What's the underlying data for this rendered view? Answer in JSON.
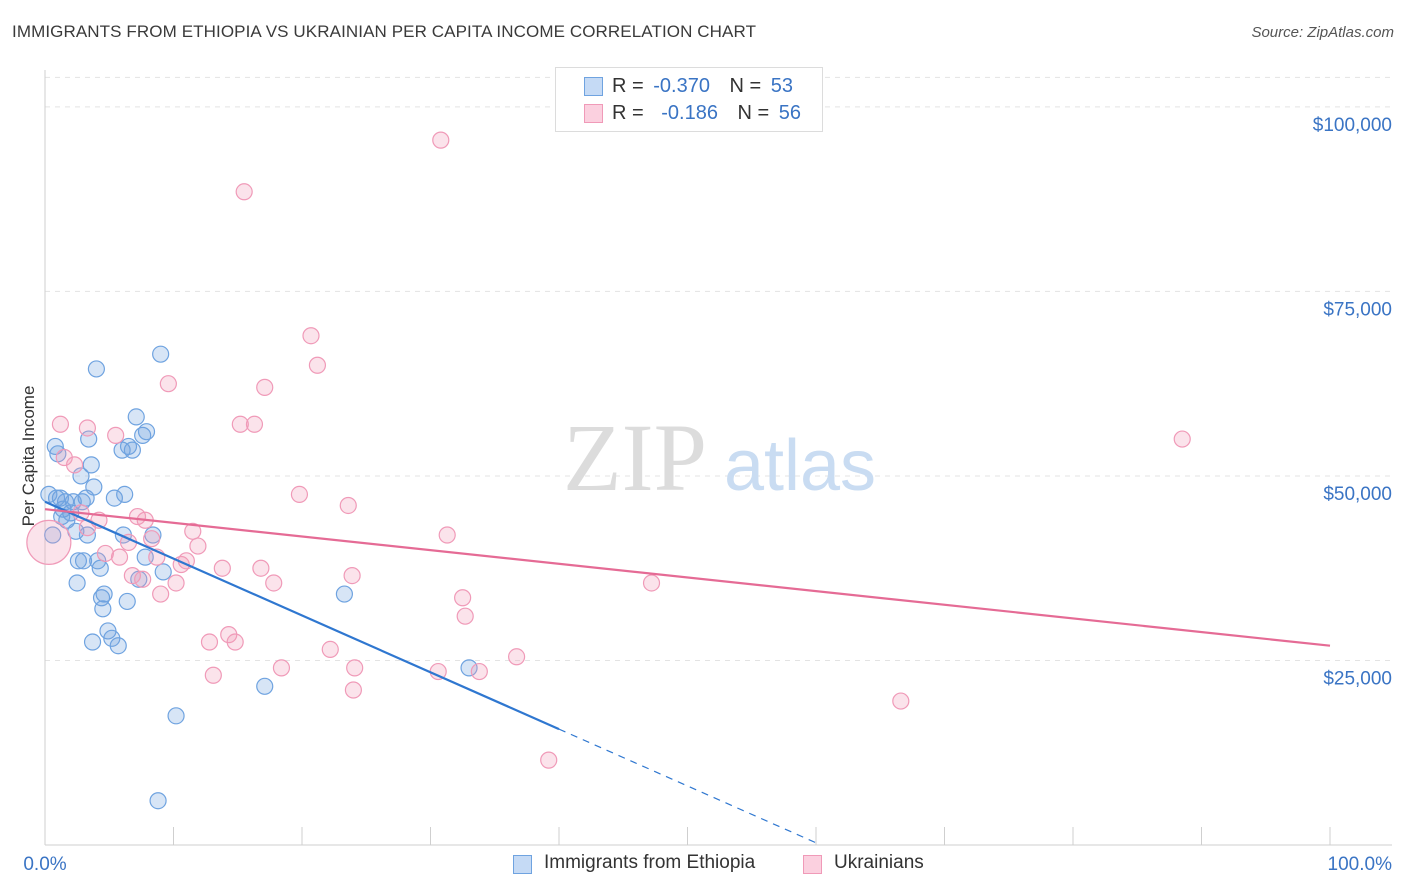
{
  "title": "IMMIGRANTS FROM ETHIOPIA VS UKRAINIAN PER CAPITA INCOME CORRELATION CHART",
  "source": "Source: ZipAtlas.com",
  "watermark": {
    "zip": "ZIP",
    "atlas": "atlas"
  },
  "stats": [
    {
      "r_label": "R =",
      "r_value": "-0.370",
      "n_label": "N =",
      "n_value": "53",
      "color": "#6fa3e0"
    },
    {
      "r_label": "R =",
      "r_value": "-0.186",
      "n_label": "N =",
      "n_value": "56",
      "color": "#f09ab8"
    }
  ],
  "chart_data": {
    "type": "scatter",
    "title": "IMMIGRANTS FROM ETHIOPIA VS UKRAINIAN PER CAPITA INCOME CORRELATION CHART",
    "xlabel": "",
    "ylabel": "Per Capita Income",
    "xlim": [
      0,
      100
    ],
    "ylim": [
      0,
      105000
    ],
    "x_tick_labels": [
      "0.0%",
      "100.0%"
    ],
    "y_ticks": [
      25000,
      50000,
      75000,
      100000
    ],
    "y_tick_labels": [
      "$25,000",
      "$50,000",
      "$75,000",
      "$100,000"
    ],
    "grid": true,
    "legend_position": "bottom-center",
    "series": [
      {
        "name": "Immigrants from Ethiopia",
        "color": "#6fa3e0",
        "line_color": "#2f77d0",
        "trend": {
          "x0": 0,
          "y0": 46500,
          "x1": 40,
          "y1": 15700,
          "dashed_to_x": 60
        },
        "points": [
          [
            0.3,
            47500
          ],
          [
            0.6,
            42000
          ],
          [
            0.8,
            54000
          ],
          [
            1.0,
            53000
          ],
          [
            1.2,
            47000
          ],
          [
            1.4,
            45500
          ],
          [
            1.6,
            46500
          ],
          [
            1.7,
            44000
          ],
          [
            2.0,
            45000
          ],
          [
            2.2,
            46500
          ],
          [
            2.4,
            42500
          ],
          [
            2.5,
            35500
          ],
          [
            2.6,
            38500
          ],
          [
            2.8,
            50000
          ],
          [
            3.0,
            38500
          ],
          [
            3.2,
            47000
          ],
          [
            3.3,
            42000
          ],
          [
            3.4,
            55000
          ],
          [
            3.6,
            51500
          ],
          [
            3.7,
            27500
          ],
          [
            3.8,
            48500
          ],
          [
            4.0,
            64500
          ],
          [
            4.1,
            38500
          ],
          [
            4.3,
            37500
          ],
          [
            4.4,
            33500
          ],
          [
            4.5,
            32000
          ],
          [
            4.6,
            34000
          ],
          [
            4.9,
            29000
          ],
          [
            5.2,
            28000
          ],
          [
            5.4,
            47000
          ],
          [
            5.7,
            27000
          ],
          [
            6.0,
            53500
          ],
          [
            6.1,
            42000
          ],
          [
            6.2,
            47500
          ],
          [
            6.4,
            33000
          ],
          [
            6.5,
            54000
          ],
          [
            6.8,
            53500
          ],
          [
            7.1,
            58000
          ],
          [
            7.3,
            36000
          ],
          [
            7.6,
            55500
          ],
          [
            7.8,
            39000
          ],
          [
            7.9,
            56000
          ],
          [
            8.4,
            42000
          ],
          [
            8.8,
            6000
          ],
          [
            9.0,
            66500
          ],
          [
            9.2,
            37000
          ],
          [
            10.2,
            17500
          ],
          [
            17.1,
            21500
          ],
          [
            23.3,
            34000
          ],
          [
            33.0,
            24000
          ],
          [
            2.9,
            46500
          ],
          [
            1.3,
            44500
          ],
          [
            0.9,
            47000
          ]
        ]
      },
      {
        "name": "Ukrainians",
        "color": "#f09ab8",
        "line_color": "#e56b95",
        "trend": {
          "x0": 0,
          "y0": 45500,
          "x1": 100,
          "y1": 27000
        },
        "points": [
          [
            0.3,
            41000
          ],
          [
            1.2,
            57000
          ],
          [
            1.5,
            52500
          ],
          [
            2.3,
            51500
          ],
          [
            2.8,
            45000
          ],
          [
            3.3,
            43000
          ],
          [
            3.3,
            56500
          ],
          [
            4.2,
            44000
          ],
          [
            4.7,
            39500
          ],
          [
            5.5,
            55500
          ],
          [
            5.8,
            39000
          ],
          [
            6.5,
            41000
          ],
          [
            6.8,
            36500
          ],
          [
            7.2,
            44500
          ],
          [
            7.6,
            36000
          ],
          [
            7.8,
            44000
          ],
          [
            8.3,
            41500
          ],
          [
            8.7,
            39000
          ],
          [
            9.0,
            34000
          ],
          [
            9.6,
            62500
          ],
          [
            10.2,
            35500
          ],
          [
            10.6,
            38000
          ],
          [
            11.0,
            38500
          ],
          [
            11.5,
            42500
          ],
          [
            11.9,
            40500
          ],
          [
            12.8,
            27500
          ],
          [
            13.1,
            23000
          ],
          [
            13.8,
            37500
          ],
          [
            14.3,
            28500
          ],
          [
            14.8,
            27500
          ],
          [
            15.2,
            57000
          ],
          [
            15.5,
            88500
          ],
          [
            16.3,
            57000
          ],
          [
            16.8,
            37500
          ],
          [
            17.1,
            62000
          ],
          [
            17.8,
            35500
          ],
          [
            18.4,
            24000
          ],
          [
            19.8,
            47500
          ],
          [
            20.7,
            69000
          ],
          [
            21.2,
            65000
          ],
          [
            22.2,
            26500
          ],
          [
            23.6,
            46000
          ],
          [
            23.9,
            36500
          ],
          [
            24.0,
            21000
          ],
          [
            24.1,
            24000
          ],
          [
            30.6,
            23500
          ],
          [
            30.8,
            95500
          ],
          [
            31.3,
            42000
          ],
          [
            32.5,
            33500
          ],
          [
            32.7,
            31000
          ],
          [
            33.8,
            23500
          ],
          [
            36.7,
            25500
          ],
          [
            39.2,
            11500
          ],
          [
            47.2,
            35500
          ],
          [
            66.6,
            19500
          ],
          [
            88.5,
            55000
          ]
        ]
      }
    ]
  }
}
